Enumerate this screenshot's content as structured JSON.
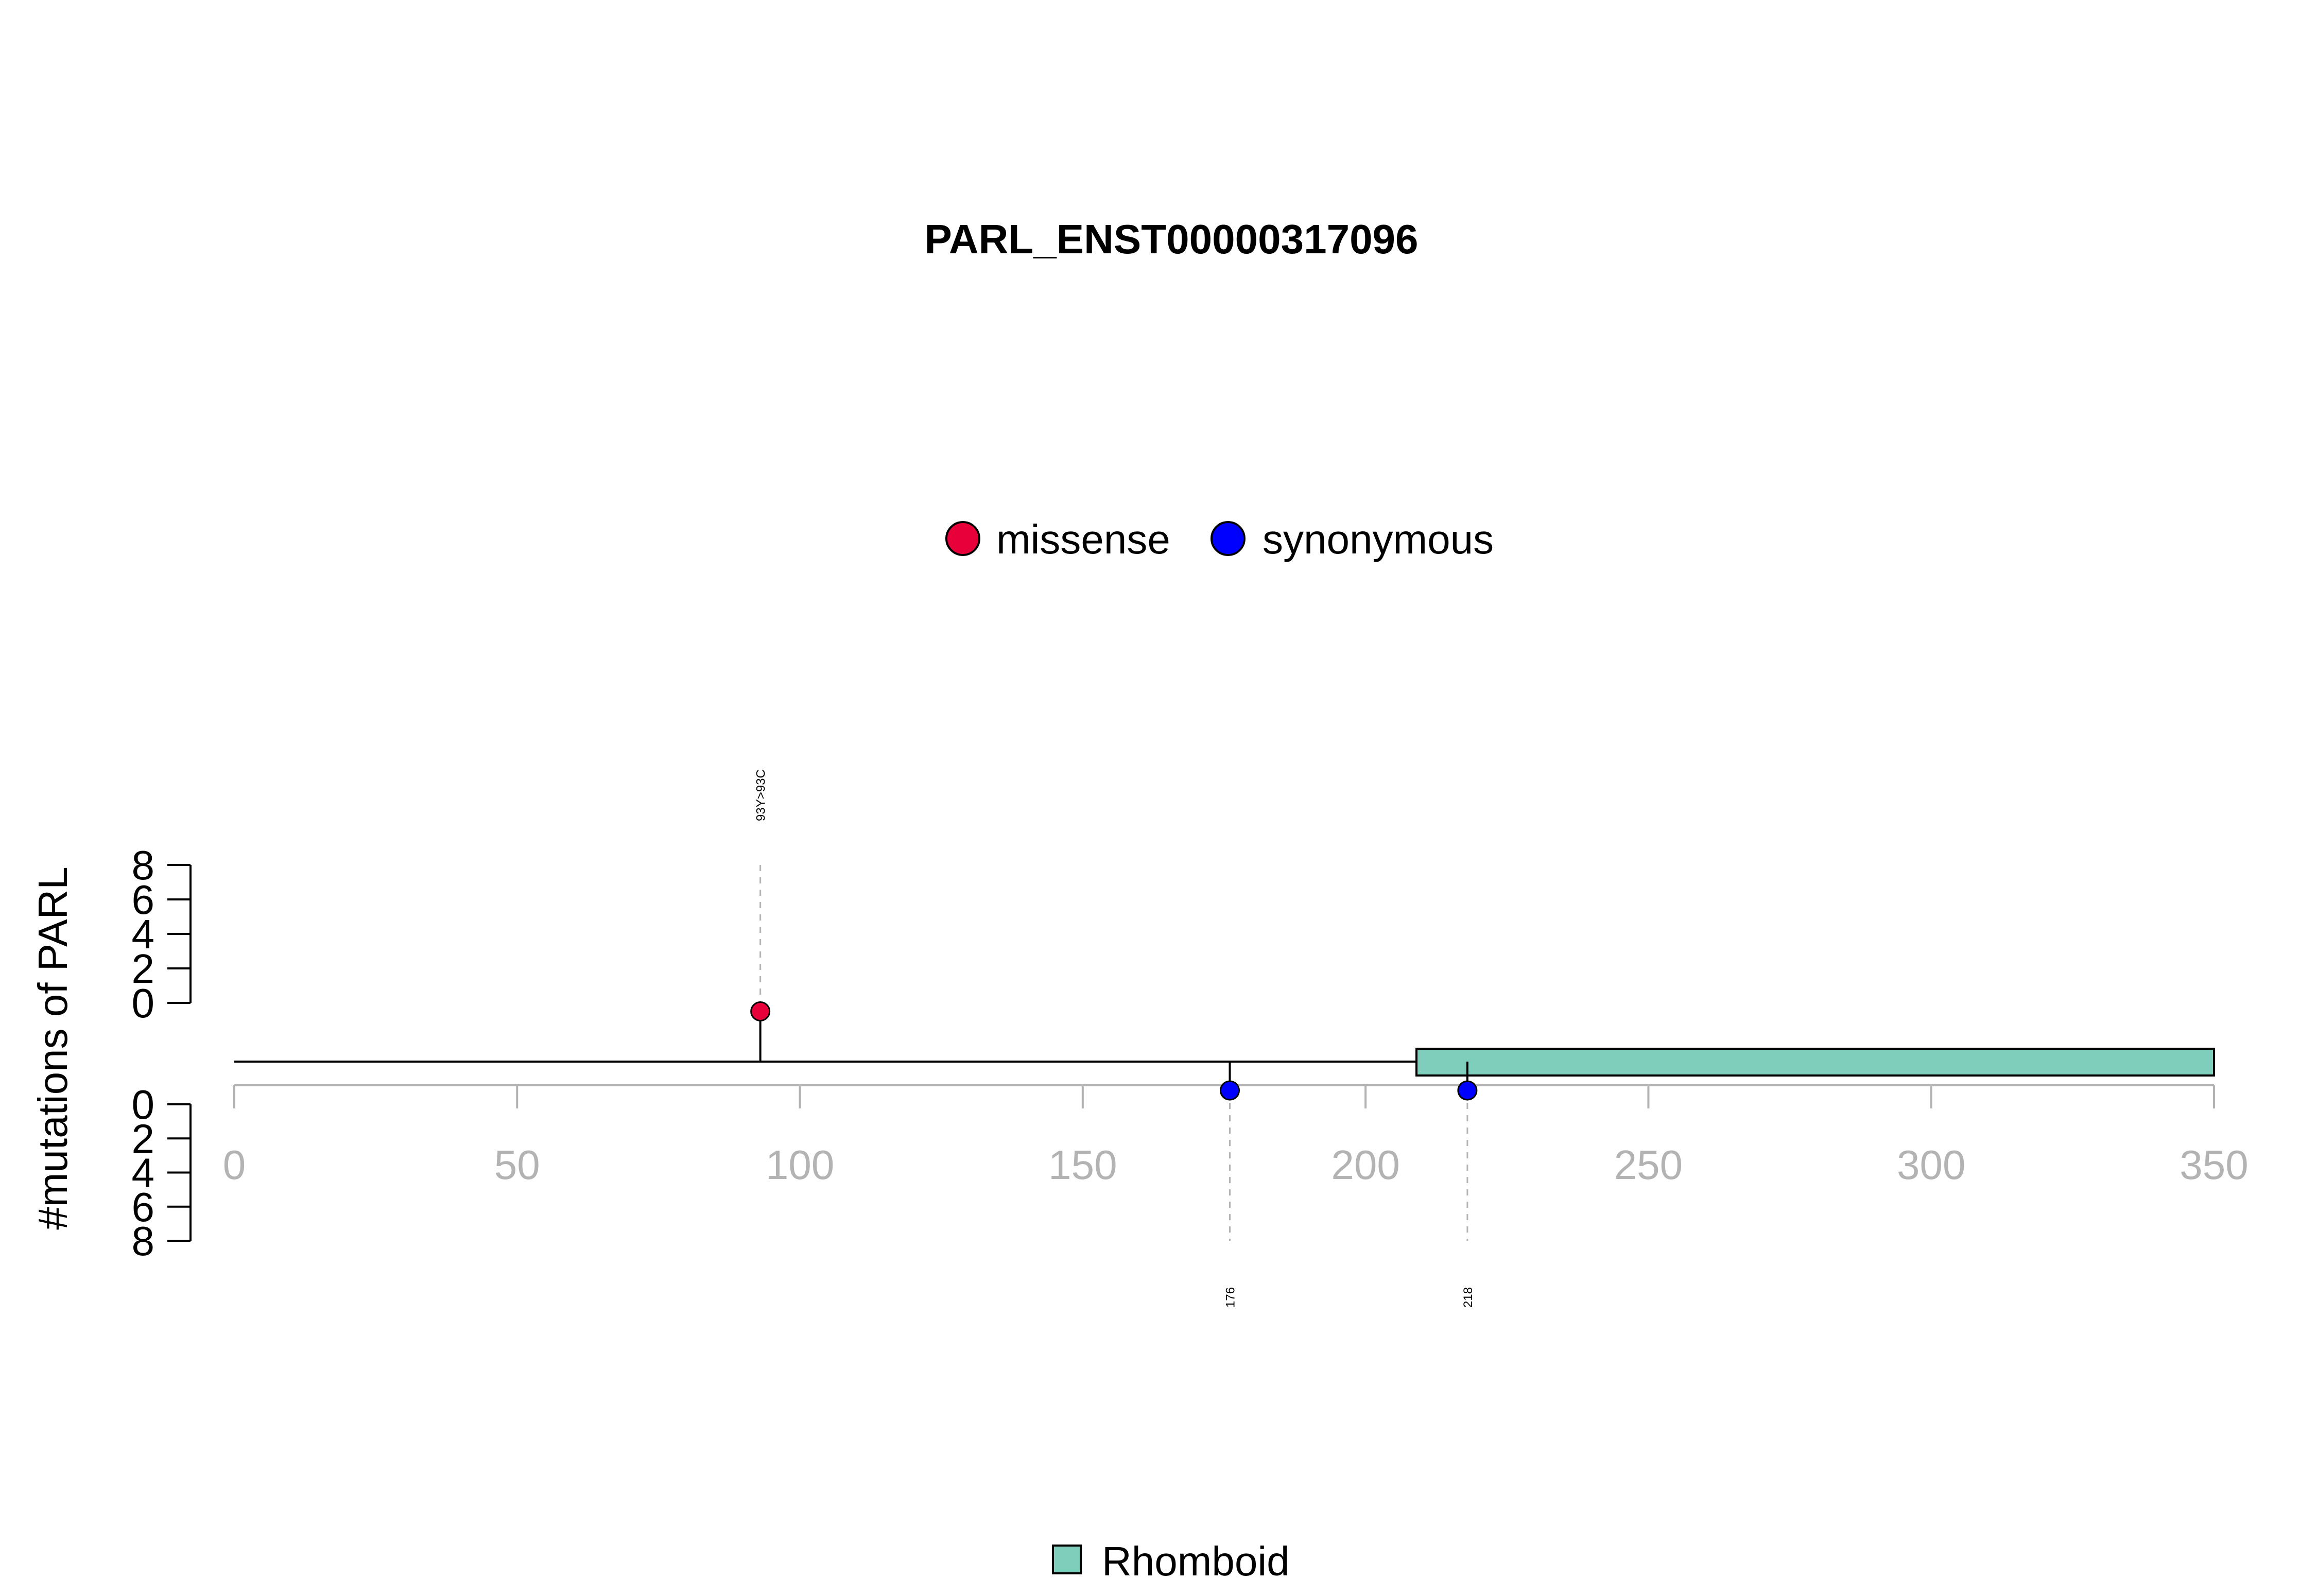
{
  "chart_data": {
    "type": "lollipop",
    "title": "PARL_ENST00000317096",
    "ylabel": "#mutations of PARL",
    "protein_length": 350,
    "xlim": [
      0,
      350
    ],
    "x_ticks": [
      0,
      50,
      100,
      150,
      200,
      250,
      300,
      350
    ],
    "y_ticks": [
      0,
      2,
      4,
      6,
      8
    ],
    "ylim": [
      0,
      8
    ],
    "legend_top": [
      {
        "label": "missense",
        "color": "#e8003a"
      },
      {
        "label": "synonymous",
        "color": "#0000ff"
      }
    ],
    "mutations": [
      {
        "position": 93,
        "count": 1,
        "type": "missense",
        "label": "93Y>93C",
        "side": "top",
        "color": "#e8003a"
      },
      {
        "position": 176,
        "count": 1,
        "type": "synonymous",
        "label": "176",
        "side": "bottom",
        "color": "#0000ff"
      },
      {
        "position": 218,
        "count": 1,
        "type": "synonymous",
        "label": "218",
        "side": "bottom",
        "color": "#0000ff"
      }
    ],
    "domains": [
      {
        "name": "Rhomboid",
        "start": 209,
        "end": 350,
        "color": "#7fcdbb"
      }
    ],
    "legend_bottom": [
      {
        "label": "Rhomboid",
        "color": "#7fcdbb"
      }
    ]
  }
}
